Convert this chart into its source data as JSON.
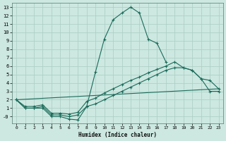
{
  "xlabel": "Humidex (Indice chaleur)",
  "bg_color": "#cce8e0",
  "grid_color": "#aaccc4",
  "line_color": "#1a6b5a",
  "xlim": [
    -0.5,
    23.5
  ],
  "ylim": [
    -0.8,
    13.5
  ],
  "xticks": [
    0,
    1,
    2,
    3,
    4,
    5,
    6,
    7,
    8,
    9,
    10,
    11,
    12,
    13,
    14,
    15,
    16,
    17,
    18,
    19,
    20,
    21,
    22,
    23
  ],
  "yticks": [
    0,
    1,
    2,
    3,
    4,
    5,
    6,
    7,
    8,
    9,
    10,
    11,
    12,
    13
  ],
  "ytick_labels": [
    "-0",
    "1",
    "2",
    "3",
    "4",
    "5",
    "6",
    "7",
    "8",
    "9",
    "10",
    "11",
    "12",
    "13"
  ],
  "curve_peak": {
    "x": [
      0,
      1,
      2,
      3,
      4,
      5,
      6,
      7,
      8,
      9,
      10,
      11,
      12,
      13,
      14,
      15,
      16,
      17
    ],
    "y": [
      2,
      1,
      1,
      1,
      0,
      0,
      -0.3,
      -0.4,
      1.2,
      5.3,
      9.2,
      11.5,
      12.3,
      13.0,
      12.3,
      9.2,
      8.7,
      6.5
    ]
  },
  "curve_upper": {
    "x": [
      0,
      1,
      2,
      3,
      4,
      5,
      6,
      7,
      8,
      9,
      10,
      11,
      12,
      13,
      14,
      15,
      16,
      17,
      18,
      19,
      20,
      21,
      22,
      23
    ],
    "y": [
      2,
      1.2,
      1.2,
      1.4,
      0.4,
      0.4,
      0.3,
      0.5,
      1.8,
      2.2,
      2.8,
      3.3,
      3.8,
      4.3,
      4.7,
      5.2,
      5.6,
      6.0,
      6.5,
      5.8,
      5.5,
      4.5,
      4.3,
      3.3
    ]
  },
  "curve_lower": {
    "x": [
      0,
      1,
      2,
      3,
      4,
      5,
      6,
      7,
      8,
      9,
      10,
      11,
      12,
      13,
      14,
      15,
      16,
      17,
      18,
      19,
      20,
      21,
      22,
      23
    ],
    "y": [
      2,
      1.0,
      1.0,
      1.2,
      0.2,
      0.2,
      0.0,
      0.2,
      1.2,
      1.5,
      2.0,
      2.5,
      3.0,
      3.5,
      4.0,
      4.5,
      5.0,
      5.5,
      5.8,
      5.8,
      5.5,
      4.5,
      3.0,
      3.0
    ]
  },
  "curve_diag": {
    "x": [
      0,
      23
    ],
    "y": [
      2,
      3.3
    ]
  }
}
